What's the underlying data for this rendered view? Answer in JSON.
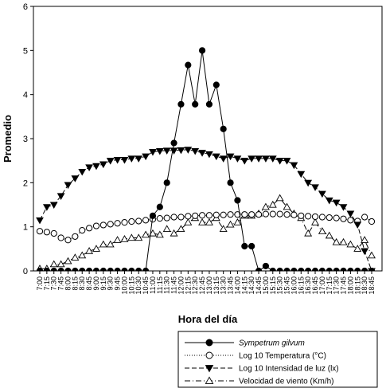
{
  "chart_data": {
    "type": "line",
    "title": "",
    "xlabel": "Hora del día",
    "ylabel": "Promedio",
    "ylim": [
      0,
      6
    ],
    "yticks": [
      0,
      1,
      2,
      3,
      4,
      5,
      6
    ],
    "grid": false,
    "legend_position": "bottom-right",
    "categories": [
      "7:00",
      "7:15",
      "7:30",
      "7:45",
      "8:00",
      "8:15",
      "8:30",
      "8:45",
      "9:00",
      "9:15",
      "9:30",
      "9:45",
      "10:00",
      "10:15",
      "10:30",
      "10:45",
      "11:00",
      "11:15",
      "11:30",
      "11:45",
      "12:00",
      "12:15",
      "12:30",
      "12:45",
      "13:00",
      "13:15",
      "13:30",
      "13:45",
      "14:00",
      "14:15",
      "14:30",
      "14:45",
      "15:00",
      "15:15",
      "15:30",
      "15:45",
      "16:00",
      "16:15",
      "16:30",
      "16:45",
      "17:00",
      "17:15",
      "17:30",
      "17:45",
      "18:00",
      "18:15",
      "18:30",
      "18:45"
    ],
    "series": [
      {
        "name": "Sympetrum gilvum",
        "marker": "filled-circle",
        "line": "solid",
        "values": [
          0,
          0,
          0,
          0,
          0,
          0,
          0,
          0,
          0,
          0,
          0,
          0,
          0,
          0,
          0,
          0,
          1.25,
          1.45,
          2.0,
          2.9,
          3.78,
          4.67,
          3.78,
          5.0,
          3.78,
          4.22,
          3.22,
          2.0,
          1.6,
          0.56,
          0.56,
          0,
          0.11,
          0,
          0,
          0,
          0,
          0,
          0,
          0,
          0,
          0,
          0,
          0,
          0,
          0,
          0,
          0
        ]
      },
      {
        "name": "Log 10 Temperatura (°C)",
        "marker": "open-circle",
        "line": "dotted",
        "values": [
          0.9,
          0.88,
          0.85,
          0.75,
          0.7,
          0.78,
          0.92,
          0.97,
          1.02,
          1.04,
          1.06,
          1.08,
          1.1,
          1.12,
          1.13,
          1.15,
          1.17,
          1.19,
          1.2,
          1.22,
          1.22,
          1.24,
          1.25,
          1.26,
          1.26,
          1.27,
          1.27,
          1.28,
          1.28,
          1.28,
          1.28,
          1.28,
          1.29,
          1.29,
          1.29,
          1.28,
          1.27,
          1.25,
          1.24,
          1.23,
          1.22,
          1.21,
          1.2,
          1.18,
          1.15,
          1.13,
          1.22,
          1.12
        ]
      },
      {
        "name": "Log 10 Intensidad de luz (lx)",
        "marker": "filled-triangle-down",
        "line": "dashed",
        "values": [
          1.15,
          1.45,
          1.5,
          1.7,
          1.95,
          2.1,
          2.25,
          2.35,
          2.38,
          2.42,
          2.5,
          2.52,
          2.52,
          2.55,
          2.55,
          2.6,
          2.7,
          2.72,
          2.73,
          2.73,
          2.74,
          2.75,
          2.72,
          2.68,
          2.65,
          2.6,
          2.55,
          2.6,
          2.55,
          2.5,
          2.55,
          2.55,
          2.55,
          2.55,
          2.5,
          2.5,
          2.4,
          2.2,
          2.0,
          1.9,
          1.75,
          1.6,
          1.55,
          1.45,
          1.3,
          1.05,
          0.45,
          0.0
        ]
      },
      {
        "name": "Velocidad de viento (Km/h)",
        "marker": "open-triangle-up",
        "line": "dash-dot",
        "values": [
          0.05,
          0.05,
          0.15,
          0.15,
          0.22,
          0.3,
          0.35,
          0.45,
          0.5,
          0.6,
          0.6,
          0.7,
          0.72,
          0.75,
          0.75,
          0.82,
          0.85,
          0.82,
          0.95,
          0.85,
          0.95,
          1.1,
          1.2,
          1.1,
          1.1,
          1.2,
          0.95,
          1.05,
          1.1,
          1.25,
          1.25,
          1.3,
          1.45,
          1.5,
          1.65,
          1.45,
          1.3,
          1.2,
          0.85,
          1.1,
          0.9,
          0.8,
          0.65,
          0.65,
          0.6,
          0.5,
          0.7,
          0.35
        ]
      }
    ]
  }
}
